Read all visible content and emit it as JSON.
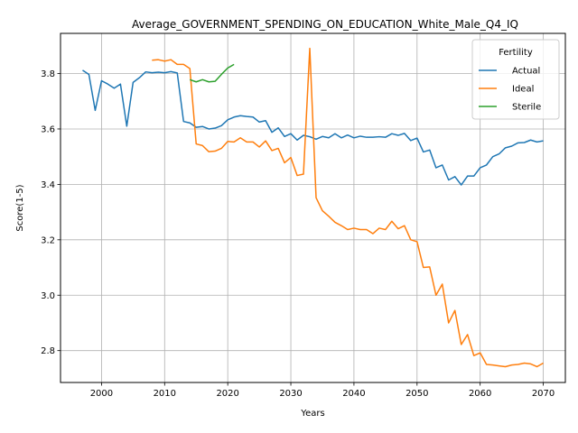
{
  "chart_data": {
    "type": "line",
    "title": "Average_GOVERNMENT_SPENDING_ON_EDUCATION_White_Male_Q4_IQ",
    "xlabel": "Years",
    "ylabel": "Score(1-5)",
    "xlim": [
      1993.5,
      2073.5
    ],
    "ylim": [
      2.685,
      3.945
    ],
    "xticks": [
      2000,
      2010,
      2020,
      2030,
      2040,
      2050,
      2060,
      2070
    ],
    "yticks": [
      2.8,
      3.0,
      3.2,
      3.4,
      3.6,
      3.8
    ],
    "grid": true,
    "legend": {
      "title": "Fertility",
      "position": "upper-right"
    },
    "series": [
      {
        "name": "Actual",
        "color": "#1f77b4",
        "x": [
          1997,
          1998,
          1999,
          2000,
          2001,
          2002,
          2003,
          2004,
          2005,
          2006,
          2007,
          2008,
          2009,
          2010,
          2011,
          2012,
          2013,
          2014,
          2015,
          2016,
          2017,
          2018,
          2019,
          2020,
          2021,
          2022,
          2023,
          2024,
          2025,
          2026,
          2027,
          2028,
          2029,
          2030,
          2031,
          2032,
          2033,
          2034,
          2035,
          2036,
          2037,
          2038,
          2039,
          2040,
          2041,
          2042,
          2043,
          2044,
          2045,
          2046,
          2047,
          2048,
          2049,
          2050,
          2051,
          2052,
          2053,
          2054,
          2055,
          2056,
          2057,
          2058,
          2059,
          2060,
          2061,
          2062,
          2063,
          2064,
          2065,
          2066,
          2067,
          2068,
          2069,
          2070
        ],
        "y": [
          3.812,
          3.797,
          3.667,
          3.774,
          3.762,
          3.747,
          3.762,
          3.61,
          3.768,
          3.785,
          3.806,
          3.803,
          3.805,
          3.803,
          3.807,
          3.802,
          3.627,
          3.622,
          3.606,
          3.609,
          3.6,
          3.603,
          3.612,
          3.633,
          3.643,
          3.648,
          3.645,
          3.643,
          3.625,
          3.63,
          3.588,
          3.604,
          3.573,
          3.583,
          3.56,
          3.577,
          3.572,
          3.563,
          3.573,
          3.568,
          3.583,
          3.568,
          3.578,
          3.568,
          3.574,
          3.57,
          3.57,
          3.572,
          3.57,
          3.583,
          3.577,
          3.584,
          3.558,
          3.567,
          3.517,
          3.524,
          3.46,
          3.47,
          3.416,
          3.428,
          3.398,
          3.43,
          3.43,
          3.46,
          3.47,
          3.5,
          3.51,
          3.532,
          3.538,
          3.55,
          3.551,
          3.56,
          3.553,
          3.557
        ]
      },
      {
        "name": "Ideal",
        "color": "#ff7f0e",
        "x": [
          2008,
          2009,
          2010,
          2011,
          2012,
          2013,
          2014,
          2015,
          2016,
          2017,
          2018,
          2019,
          2020,
          2021,
          2022,
          2023,
          2024,
          2025,
          2026,
          2027,
          2028,
          2029,
          2030,
          2031,
          2032,
          2033,
          2034,
          2035,
          2036,
          2037,
          2038,
          2039,
          2040,
          2041,
          2042,
          2043,
          2044,
          2045,
          2046,
          2047,
          2048,
          2049,
          2050,
          2051,
          2052,
          2053,
          2054,
          2055,
          2056,
          2057,
          2058,
          2059,
          2060,
          2061,
          2062,
          2063,
          2064,
          2065,
          2066,
          2067,
          2068,
          2069,
          2070
        ],
        "y": [
          3.848,
          3.85,
          3.845,
          3.85,
          3.833,
          3.833,
          3.818,
          3.546,
          3.54,
          3.518,
          3.52,
          3.53,
          3.555,
          3.553,
          3.568,
          3.553,
          3.553,
          3.535,
          3.557,
          3.522,
          3.53,
          3.478,
          3.497,
          3.432,
          3.437,
          3.891,
          3.352,
          3.305,
          3.285,
          3.263,
          3.251,
          3.237,
          3.242,
          3.237,
          3.237,
          3.222,
          3.242,
          3.237,
          3.267,
          3.24,
          3.251,
          3.2,
          3.193,
          3.1,
          3.102,
          3.0,
          3.04,
          2.9,
          2.945,
          2.822,
          2.858,
          2.782,
          2.792,
          2.75,
          2.748,
          2.745,
          2.742,
          2.748,
          2.75,
          2.755,
          2.752,
          2.742,
          2.755
        ]
      },
      {
        "name": "Sterile",
        "color": "#2ca02c",
        "x": [
          2014,
          2015,
          2016,
          2017,
          2018,
          2019,
          2020,
          2021
        ],
        "y": [
          3.778,
          3.77,
          3.778,
          3.77,
          3.772,
          3.797,
          3.82,
          3.833
        ]
      }
    ]
  }
}
